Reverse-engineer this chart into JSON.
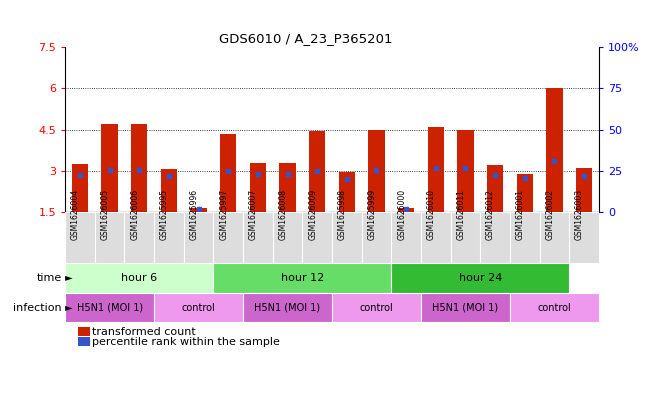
{
  "title": "GDS6010 / A_23_P365201",
  "samples": [
    "GSM1626004",
    "GSM1626005",
    "GSM1626006",
    "GSM1625995",
    "GSM1625996",
    "GSM1625997",
    "GSM1626007",
    "GSM1626008",
    "GSM1626009",
    "GSM1625998",
    "GSM1625999",
    "GSM1626000",
    "GSM1626010",
    "GSM1626011",
    "GSM1626012",
    "GSM1626001",
    "GSM1626002",
    "GSM1626003"
  ],
  "bar_heights": [
    3.25,
    4.7,
    4.7,
    3.07,
    1.65,
    4.35,
    3.3,
    3.3,
    4.45,
    2.95,
    4.5,
    1.65,
    4.6,
    4.5,
    3.2,
    2.9,
    6.0,
    3.1
  ],
  "blue_markers": [
    2.85,
    3.05,
    3.05,
    2.8,
    1.6,
    3.0,
    2.88,
    2.88,
    3.0,
    2.7,
    3.05,
    1.6,
    3.1,
    3.1,
    2.85,
    2.75,
    3.35,
    2.8
  ],
  "bar_color": "#cc2200",
  "blue_color": "#3355cc",
  "ymin": 1.5,
  "ymax": 7.5,
  "yticks": [
    1.5,
    3.0,
    4.5,
    6.0,
    7.5
  ],
  "ytick_labels": [
    "1.5",
    "3",
    "4.5",
    "6",
    "7.5"
  ],
  "right_ytick_vals": [
    0.0,
    0.25,
    0.5,
    0.75,
    1.0
  ],
  "right_ytick_labels": [
    "0",
    "25",
    "50",
    "75",
    "100%"
  ],
  "grid_lines": [
    3.0,
    4.5,
    6.0
  ],
  "time_groups": [
    {
      "label": "hour 6",
      "start": 0,
      "end": 5,
      "color": "#ccffcc"
    },
    {
      "label": "hour 12",
      "start": 5,
      "end": 11,
      "color": "#66dd66"
    },
    {
      "label": "hour 24",
      "start": 11,
      "end": 17,
      "color": "#33bb33"
    }
  ],
  "infection_groups": [
    {
      "label": "H5N1 (MOI 1)",
      "start": 0,
      "end": 3,
      "color": "#cc66cc"
    },
    {
      "label": "control",
      "start": 3,
      "end": 6,
      "color": "#ee99ee"
    },
    {
      "label": "H5N1 (MOI 1)",
      "start": 6,
      "end": 9,
      "color": "#cc66cc"
    },
    {
      "label": "control",
      "start": 9,
      "end": 12,
      "color": "#ee99ee"
    },
    {
      "label": "H5N1 (MOI 1)",
      "start": 12,
      "end": 15,
      "color": "#cc66cc"
    },
    {
      "label": "control",
      "start": 15,
      "end": 18,
      "color": "#ee99ee"
    }
  ],
  "legend_bar_label": "transformed count",
  "legend_blue_label": "percentile rank within the sample",
  "bar_width": 0.55,
  "sample_box_color": "#dddddd",
  "background_color": "#ffffff"
}
